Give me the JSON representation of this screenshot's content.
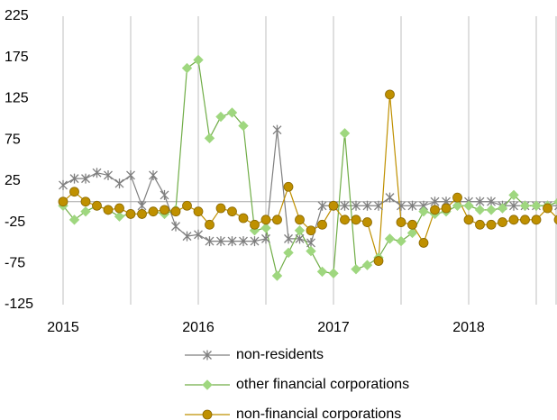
{
  "chart_data": {
    "type": "line",
    "categories": [
      "2015",
      null,
      null,
      null,
      null,
      null,
      null,
      null,
      null,
      null,
      null,
      null,
      "2016",
      null,
      null,
      null,
      null,
      null,
      null,
      null,
      null,
      null,
      null,
      null,
      "2017",
      null,
      null,
      null,
      null,
      null,
      null,
      null,
      null,
      null,
      null,
      null,
      "2018",
      null,
      null,
      null,
      null,
      null,
      null,
      null,
      null
    ],
    "series": [
      {
        "name": "non-residents",
        "color": "#7f7f7f",
        "marker": "asterisk",
        "values": [
          20,
          28,
          28,
          35,
          32,
          22,
          32,
          -5,
          32,
          8,
          -30,
          -42,
          -40,
          -48,
          -48,
          -48,
          -48,
          -48,
          -45,
          87,
          -45,
          -45,
          -50,
          -5,
          -5,
          -5,
          -5,
          -5,
          -5,
          5,
          -5,
          -5,
          -5,
          0,
          0,
          0,
          0,
          0,
          0,
          -5,
          -5,
          -5,
          -5,
          -5,
          -5
        ]
      },
      {
        "name": "other financial corporations",
        "color": "#70ad47",
        "marker": "diamond",
        "values": [
          -5,
          -22,
          -12,
          -5,
          -10,
          -18,
          -15,
          -15,
          -12,
          -15,
          -10,
          162,
          172,
          77,
          103,
          108,
          92,
          -35,
          -32,
          -90,
          -62,
          -35,
          -60,
          -85,
          -87,
          83,
          -82,
          -77,
          -68,
          -45,
          -48,
          -38,
          -12,
          -15,
          -12,
          -5,
          -5,
          -10,
          -10,
          -8,
          8,
          -5,
          -5,
          -5,
          0
        ]
      },
      {
        "name": "non-financial corporations",
        "color": "#bf9000",
        "marker": "circle",
        "values": [
          0,
          12,
          0,
          -5,
          -10,
          -8,
          -15,
          -15,
          -12,
          -10,
          -12,
          -5,
          -12,
          -28,
          -8,
          -12,
          -20,
          -28,
          -22,
          -22,
          18,
          -22,
          -35,
          -28,
          -5,
          -22,
          -22,
          -25,
          -72,
          130,
          -25,
          -28,
          -50,
          -10,
          -8,
          5,
          -22,
          -28,
          -28,
          -25,
          -22,
          -22,
          -22,
          -8,
          -22
        ]
      }
    ],
    "ylim": [
      -125,
      225
    ],
    "yticks": [
      -125,
      -75,
      -25,
      25,
      75,
      125,
      175,
      225
    ],
    "grid": true,
    "legend": "bottom"
  }
}
